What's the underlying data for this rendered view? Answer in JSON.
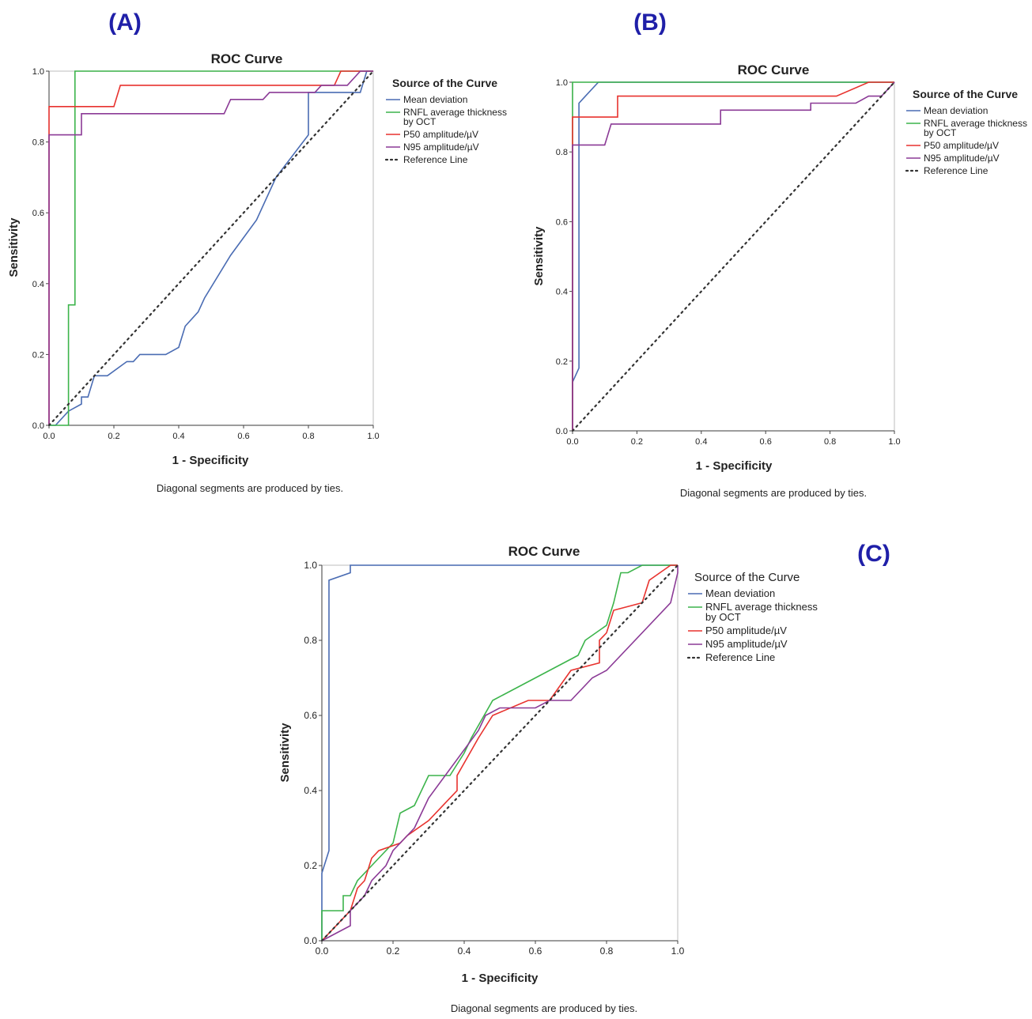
{
  "figure": {
    "panel_labels": [
      "(A)",
      "(B)",
      "(C)"
    ]
  },
  "legend": {
    "title": "Source of the Curve",
    "items": [
      {
        "label": [
          "Mean deviation"
        ],
        "color": "#4a6cb3",
        "dashed": false
      },
      {
        "label": [
          "RNFL average thickness",
          "by OCT"
        ],
        "color": "#3cb44b",
        "dashed": false
      },
      {
        "label": [
          "P50 amplitude/µV"
        ],
        "color": "#e8322e",
        "dashed": false
      },
      {
        "label": [
          "N95 amplitude/µV"
        ],
        "color": "#8b3a96",
        "dashed": false
      },
      {
        "label": [
          "Reference Line"
        ],
        "color": "#333333",
        "dashed": true
      }
    ]
  },
  "chart_data": [
    {
      "type": "line",
      "panel": "(A)",
      "title": "ROC Curve",
      "xlabel": "1 - Specificity",
      "ylabel": "Sensitivity",
      "xlim": [
        0,
        1
      ],
      "ylim": [
        0,
        1
      ],
      "ticks": [
        "0.0",
        "0.2",
        "0.4",
        "0.6",
        "0.8",
        "1.0"
      ],
      "note": "Diagonal segments are produced by ties.",
      "series": [
        {
          "name": "Mean deviation",
          "points": [
            [
              0,
              0
            ],
            [
              0.02,
              0
            ],
            [
              0.06,
              0.04
            ],
            [
              0.1,
              0.06
            ],
            [
              0.1,
              0.08
            ],
            [
              0.12,
              0.08
            ],
            [
              0.14,
              0.14
            ],
            [
              0.18,
              0.14
            ],
            [
              0.24,
              0.18
            ],
            [
              0.26,
              0.18
            ],
            [
              0.28,
              0.2
            ],
            [
              0.36,
              0.2
            ],
            [
              0.4,
              0.22
            ],
            [
              0.42,
              0.28
            ],
            [
              0.46,
              0.32
            ],
            [
              0.48,
              0.36
            ],
            [
              0.56,
              0.48
            ],
            [
              0.64,
              0.58
            ],
            [
              0.7,
              0.7
            ],
            [
              0.8,
              0.82
            ],
            [
              0.8,
              0.94
            ],
            [
              0.96,
              0.94
            ],
            [
              0.98,
              1
            ],
            [
              1,
              1
            ]
          ]
        },
        {
          "name": "RNFL average thickness by OCT",
          "points": [
            [
              0,
              0
            ],
            [
              0.06,
              0
            ],
            [
              0.06,
              0.34
            ],
            [
              0.08,
              0.34
            ],
            [
              0.08,
              1
            ],
            [
              1,
              1
            ]
          ]
        },
        {
          "name": "P50 amplitude/µV",
          "points": [
            [
              0,
              0
            ],
            [
              0,
              0.9
            ],
            [
              0.2,
              0.9
            ],
            [
              0.22,
              0.96
            ],
            [
              0.88,
              0.96
            ],
            [
              0.9,
              1
            ],
            [
              1,
              1
            ]
          ]
        },
        {
          "name": "N95 amplitude/µV",
          "points": [
            [
              0,
              0
            ],
            [
              0,
              0.82
            ],
            [
              0.1,
              0.82
            ],
            [
              0.1,
              0.88
            ],
            [
              0.54,
              0.88
            ],
            [
              0.56,
              0.92
            ],
            [
              0.66,
              0.92
            ],
            [
              0.68,
              0.94
            ],
            [
              0.82,
              0.94
            ],
            [
              0.84,
              0.96
            ],
            [
              0.92,
              0.96
            ],
            [
              0.96,
              1
            ],
            [
              1,
              1
            ]
          ]
        },
        {
          "name": "Reference Line",
          "points": [
            [
              0,
              0
            ],
            [
              1,
              1
            ]
          ]
        }
      ]
    },
    {
      "type": "line",
      "panel": "(B)",
      "title": "ROC Curve",
      "xlabel": "1 - Specificity",
      "ylabel": "Sensitivity",
      "xlim": [
        0,
        1
      ],
      "ylim": [
        0,
        1
      ],
      "ticks": [
        "0.0",
        "0.2",
        "0.4",
        "0.6",
        "0.8",
        "1.0"
      ],
      "note": "Diagonal segments are produced by ties.",
      "series": [
        {
          "name": "Mean deviation",
          "points": [
            [
              0,
              0
            ],
            [
              0,
              0.14
            ],
            [
              0.02,
              0.18
            ],
            [
              0.02,
              0.94
            ],
            [
              0.04,
              0.96
            ],
            [
              0.08,
              1
            ],
            [
              1,
              1
            ]
          ]
        },
        {
          "name": "RNFL average thickness by OCT",
          "points": [
            [
              0,
              0
            ],
            [
              0,
              1
            ],
            [
              1,
              1
            ]
          ]
        },
        {
          "name": "P50 amplitude/µV",
          "points": [
            [
              0,
              0
            ],
            [
              0,
              0.9
            ],
            [
              0.14,
              0.9
            ],
            [
              0.14,
              0.96
            ],
            [
              0.82,
              0.96
            ],
            [
              0.92,
              1
            ],
            [
              1,
              1
            ]
          ]
        },
        {
          "name": "N95 amplitude/µV",
          "points": [
            [
              0,
              0
            ],
            [
              0,
              0.82
            ],
            [
              0.1,
              0.82
            ],
            [
              0.12,
              0.88
            ],
            [
              0.46,
              0.88
            ],
            [
              0.46,
              0.92
            ],
            [
              0.74,
              0.92
            ],
            [
              0.74,
              0.94
            ],
            [
              0.88,
              0.94
            ],
            [
              0.92,
              0.96
            ],
            [
              0.96,
              0.96
            ],
            [
              0.98,
              0.98
            ],
            [
              1,
              1
            ]
          ]
        },
        {
          "name": "Reference Line",
          "points": [
            [
              0,
              0
            ],
            [
              1,
              1
            ]
          ]
        }
      ]
    },
    {
      "type": "line",
      "panel": "(C)",
      "title": "ROC Curve",
      "xlabel": "1 - Specificity",
      "ylabel": "Sensitivity",
      "xlim": [
        0,
        1
      ],
      "ylim": [
        0,
        1
      ],
      "ticks": [
        "0.0",
        "0.2",
        "0.4",
        "0.6",
        "0.8",
        "1.0"
      ],
      "note": "Diagonal segments are produced by ties.",
      "series": [
        {
          "name": "Mean deviation",
          "points": [
            [
              0,
              0
            ],
            [
              0,
              0.18
            ],
            [
              0.02,
              0.24
            ],
            [
              0.02,
              0.96
            ],
            [
              0.08,
              0.98
            ],
            [
              0.08,
              1
            ],
            [
              1,
              1
            ]
          ]
        },
        {
          "name": "RNFL average thickness by OCT",
          "points": [
            [
              0,
              0
            ],
            [
              0,
              0.08
            ],
            [
              0.06,
              0.08
            ],
            [
              0.06,
              0.12
            ],
            [
              0.08,
              0.12
            ],
            [
              0.1,
              0.16
            ],
            [
              0.14,
              0.2
            ],
            [
              0.16,
              0.22
            ],
            [
              0.2,
              0.26
            ],
            [
              0.22,
              0.34
            ],
            [
              0.26,
              0.36
            ],
            [
              0.3,
              0.44
            ],
            [
              0.36,
              0.44
            ],
            [
              0.4,
              0.5
            ],
            [
              0.42,
              0.54
            ],
            [
              0.48,
              0.64
            ],
            [
              0.72,
              0.76
            ],
            [
              0.74,
              0.8
            ],
            [
              0.8,
              0.84
            ],
            [
              0.82,
              0.9
            ],
            [
              0.84,
              0.98
            ],
            [
              0.86,
              0.98
            ],
            [
              0.9,
              1
            ],
            [
              1,
              1
            ]
          ]
        },
        {
          "name": "P50 amplitude/µV",
          "points": [
            [
              0,
              0
            ],
            [
              0.08,
              0.08
            ],
            [
              0.1,
              0.14
            ],
            [
              0.12,
              0.16
            ],
            [
              0.14,
              0.22
            ],
            [
              0.16,
              0.24
            ],
            [
              0.22,
              0.26
            ],
            [
              0.24,
              0.28
            ],
            [
              0.3,
              0.32
            ],
            [
              0.38,
              0.4
            ],
            [
              0.38,
              0.44
            ],
            [
              0.44,
              0.54
            ],
            [
              0.48,
              0.6
            ],
            [
              0.58,
              0.64
            ],
            [
              0.64,
              0.64
            ],
            [
              0.7,
              0.72
            ],
            [
              0.78,
              0.74
            ],
            [
              0.78,
              0.8
            ],
            [
              0.8,
              0.82
            ],
            [
              0.82,
              0.88
            ],
            [
              0.9,
              0.9
            ],
            [
              0.92,
              0.96
            ],
            [
              0.98,
              1
            ],
            [
              1,
              1
            ]
          ]
        },
        {
          "name": "N95 amplitude/µV",
          "points": [
            [
              0,
              0
            ],
            [
              0.08,
              0.04
            ],
            [
              0.08,
              0.08
            ],
            [
              0.12,
              0.12
            ],
            [
              0.14,
              0.16
            ],
            [
              0.18,
              0.2
            ],
            [
              0.2,
              0.24
            ],
            [
              0.26,
              0.3
            ],
            [
              0.28,
              0.34
            ],
            [
              0.3,
              0.38
            ],
            [
              0.44,
              0.56
            ],
            [
              0.46,
              0.6
            ],
            [
              0.5,
              0.62
            ],
            [
              0.6,
              0.62
            ],
            [
              0.64,
              0.64
            ],
            [
              0.7,
              0.64
            ],
            [
              0.76,
              0.7
            ],
            [
              0.8,
              0.72
            ],
            [
              0.98,
              0.9
            ],
            [
              1,
              0.98
            ],
            [
              1,
              1
            ]
          ]
        },
        {
          "name": "Reference Line",
          "points": [
            [
              0,
              0
            ],
            [
              1,
              1
            ]
          ]
        }
      ]
    }
  ]
}
